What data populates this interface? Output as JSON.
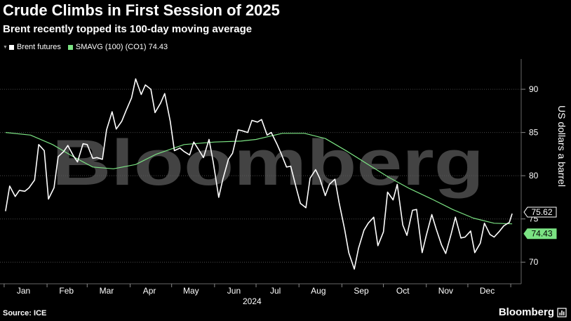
{
  "title": "Crude Climbs in First Session of 2025",
  "subtitle": "Brent recently topped its 100-day moving average",
  "legend": [
    {
      "label": "Brent futures",
      "color": "#ffffff"
    },
    {
      "label": "SMAVG (100) (CO1) 74.43",
      "color": "#7be383"
    }
  ],
  "watermark": "Bloomberg",
  "source": "Source: ICE",
  "brand": "Bloomberg",
  "chart_data": {
    "type": "line",
    "xlabel": "2024",
    "ylabel": "US dollars a barrel",
    "x_tick_labels": [
      "Jan",
      "Feb",
      "Mar",
      "Apr",
      "May",
      "Jun",
      "Jul",
      "Aug",
      "Sep",
      "Oct",
      "Nov",
      "Dec"
    ],
    "y_ticks": [
      70,
      75,
      80,
      85,
      90
    ],
    "ylim": [
      67.5,
      93.5
    ],
    "grid": "horizontal dotted",
    "series": [
      {
        "name": "Brent futures",
        "color": "#ffffff",
        "last_value_label": "75.62",
        "points": [
          [
            "2024-01-02",
            75.9
          ],
          [
            "2024-01-05",
            78.8
          ],
          [
            "2024-01-09",
            77.6
          ],
          [
            "2024-01-12",
            78.3
          ],
          [
            "2024-01-16",
            78.2
          ],
          [
            "2024-01-19",
            78.6
          ],
          [
            "2024-01-23",
            79.5
          ],
          [
            "2024-01-26",
            83.6
          ],
          [
            "2024-01-30",
            82.9
          ],
          [
            "2024-02-02",
            77.3
          ],
          [
            "2024-02-06",
            78.6
          ],
          [
            "2024-02-09",
            82.2
          ],
          [
            "2024-02-13",
            82.8
          ],
          [
            "2024-02-16",
            83.5
          ],
          [
            "2024-02-20",
            82.3
          ],
          [
            "2024-02-23",
            81.6
          ],
          [
            "2024-02-27",
            83.7
          ],
          [
            "2024-03-01",
            83.6
          ],
          [
            "2024-03-05",
            82.0
          ],
          [
            "2024-03-08",
            82.1
          ],
          [
            "2024-03-12",
            81.9
          ],
          [
            "2024-03-15",
            85.3
          ],
          [
            "2024-03-19",
            87.4
          ],
          [
            "2024-03-22",
            85.4
          ],
          [
            "2024-03-26",
            86.3
          ],
          [
            "2024-03-29",
            87.5
          ],
          [
            "2024-04-02",
            89.0
          ],
          [
            "2024-04-05",
            91.2
          ],
          [
            "2024-04-09",
            89.4
          ],
          [
            "2024-04-12",
            90.5
          ],
          [
            "2024-04-16",
            90.0
          ],
          [
            "2024-04-19",
            87.3
          ],
          [
            "2024-04-23",
            88.4
          ],
          [
            "2024-04-26",
            89.5
          ],
          [
            "2024-04-30",
            86.3
          ],
          [
            "2024-05-03",
            82.9
          ],
          [
            "2024-05-07",
            83.2
          ],
          [
            "2024-05-10",
            82.8
          ],
          [
            "2024-05-14",
            82.4
          ],
          [
            "2024-05-17",
            83.9
          ],
          [
            "2024-05-21",
            82.9
          ],
          [
            "2024-05-24",
            82.1
          ],
          [
            "2024-05-28",
            84.2
          ],
          [
            "2024-05-31",
            81.6
          ],
          [
            "2024-06-04",
            77.5
          ],
          [
            "2024-06-07",
            79.6
          ],
          [
            "2024-06-11",
            81.9
          ],
          [
            "2024-06-14",
            82.6
          ],
          [
            "2024-06-18",
            85.3
          ],
          [
            "2024-06-21",
            85.2
          ],
          [
            "2024-06-25",
            85.0
          ],
          [
            "2024-06-28",
            86.4
          ],
          [
            "2024-07-02",
            86.2
          ],
          [
            "2024-07-05",
            86.5
          ],
          [
            "2024-07-09",
            84.7
          ],
          [
            "2024-07-12",
            85.0
          ],
          [
            "2024-07-16",
            83.7
          ],
          [
            "2024-07-19",
            82.6
          ],
          [
            "2024-07-23",
            81.0
          ],
          [
            "2024-07-26",
            81.1
          ],
          [
            "2024-07-30",
            78.6
          ],
          [
            "2024-08-02",
            76.8
          ],
          [
            "2024-08-06",
            76.3
          ],
          [
            "2024-08-09",
            79.7
          ],
          [
            "2024-08-13",
            80.7
          ],
          [
            "2024-08-16",
            79.7
          ],
          [
            "2024-08-20",
            77.7
          ],
          [
            "2024-08-23",
            79.0
          ],
          [
            "2024-08-27",
            79.6
          ],
          [
            "2024-08-30",
            76.9
          ],
          [
            "2024-09-03",
            73.8
          ],
          [
            "2024-09-06",
            71.1
          ],
          [
            "2024-09-10",
            69.2
          ],
          [
            "2024-09-13",
            71.6
          ],
          [
            "2024-09-17",
            73.7
          ],
          [
            "2024-09-20",
            74.5
          ],
          [
            "2024-09-24",
            75.2
          ],
          [
            "2024-09-27",
            71.9
          ],
          [
            "2024-10-01",
            73.5
          ],
          [
            "2024-10-04",
            78.1
          ],
          [
            "2024-10-08",
            77.2
          ],
          [
            "2024-10-11",
            79.0
          ],
          [
            "2024-10-15",
            74.3
          ],
          [
            "2024-10-18",
            73.1
          ],
          [
            "2024-10-22",
            76.0
          ],
          [
            "2024-10-25",
            76.1
          ],
          [
            "2024-10-29",
            71.1
          ],
          [
            "2024-11-01",
            73.1
          ],
          [
            "2024-11-05",
            75.5
          ],
          [
            "2024-11-08",
            73.9
          ],
          [
            "2024-11-12",
            72.0
          ],
          [
            "2024-11-15",
            71.0
          ],
          [
            "2024-11-19",
            73.3
          ],
          [
            "2024-11-22",
            75.2
          ],
          [
            "2024-11-26",
            72.8
          ],
          [
            "2024-11-29",
            72.9
          ],
          [
            "2024-12-03",
            73.6
          ],
          [
            "2024-12-06",
            71.1
          ],
          [
            "2024-12-10",
            72.2
          ],
          [
            "2024-12-13",
            74.5
          ],
          [
            "2024-12-17",
            73.2
          ],
          [
            "2024-12-20",
            72.9
          ],
          [
            "2024-12-24",
            73.6
          ],
          [
            "2024-12-27",
            74.2
          ],
          [
            "2024-12-31",
            74.6
          ],
          [
            "2025-01-02",
            75.62
          ]
        ]
      },
      {
        "name": "SMAVG (100) (CO1)",
        "color": "#7be383",
        "last_value_label": "74.43",
        "points": [
          [
            "2024-01-02",
            85.0
          ],
          [
            "2024-01-20",
            84.7
          ],
          [
            "2024-02-05",
            83.6
          ],
          [
            "2024-02-20",
            82.2
          ],
          [
            "2024-03-05",
            81.0
          ],
          [
            "2024-03-20",
            80.8
          ],
          [
            "2024-04-05",
            81.3
          ],
          [
            "2024-04-20",
            82.5
          ],
          [
            "2024-05-10",
            83.6
          ],
          [
            "2024-06-01",
            83.9
          ],
          [
            "2024-06-20",
            84.0
          ],
          [
            "2024-07-01",
            84.2
          ],
          [
            "2024-07-20",
            84.9
          ],
          [
            "2024-08-05",
            84.9
          ],
          [
            "2024-08-20",
            84.3
          ],
          [
            "2024-09-05",
            82.8
          ],
          [
            "2024-09-20",
            81.3
          ],
          [
            "2024-10-05",
            79.8
          ],
          [
            "2024-10-20",
            78.5
          ],
          [
            "2024-11-05",
            77.3
          ],
          [
            "2024-11-20",
            76.1
          ],
          [
            "2024-12-05",
            75.1
          ],
          [
            "2024-12-20",
            74.5
          ],
          [
            "2025-01-02",
            74.43
          ]
        ]
      }
    ]
  }
}
